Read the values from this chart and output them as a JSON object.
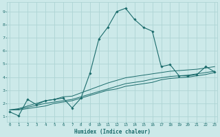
{
  "xlabel": "Humidex (Indice chaleur)",
  "bg_color": "#cce9e9",
  "grid_color": "#aed4d4",
  "line_color": "#1a6b6b",
  "x_ticks": [
    0,
    1,
    2,
    3,
    4,
    5,
    6,
    7,
    8,
    9,
    10,
    11,
    12,
    13,
    14,
    15,
    16,
    17,
    18,
    19,
    20,
    21,
    22,
    23
  ],
  "y_ticks": [
    1,
    2,
    3,
    4,
    5,
    6,
    7,
    8,
    9
  ],
  "xlim": [
    -0.3,
    23.3
  ],
  "ylim": [
    0.6,
    9.7
  ],
  "series1_x": [
    0,
    1,
    2,
    3,
    4,
    5,
    6,
    7,
    8,
    9,
    10,
    11,
    12,
    13,
    14,
    15,
    16,
    17,
    18,
    19,
    20,
    21,
    22,
    23
  ],
  "series1_y": [
    1.35,
    1.05,
    2.3,
    1.9,
    2.2,
    2.3,
    2.4,
    1.65,
    2.4,
    4.3,
    6.9,
    7.8,
    9.0,
    9.25,
    8.4,
    7.8,
    7.5,
    4.8,
    4.95,
    4.1,
    4.1,
    4.2,
    4.8,
    4.4
  ],
  "series2_x": [
    0,
    1,
    2,
    3,
    4,
    5,
    6,
    7,
    8,
    9,
    10,
    11,
    12,
    13,
    14,
    15,
    16,
    17,
    18,
    19,
    20,
    21,
    22,
    23
  ],
  "series2_y": [
    1.5,
    1.5,
    1.6,
    1.7,
    1.8,
    2.0,
    2.1,
    2.2,
    2.4,
    2.6,
    2.8,
    3.0,
    3.1,
    3.3,
    3.4,
    3.5,
    3.6,
    3.8,
    3.9,
    3.95,
    4.0,
    4.1,
    4.2,
    4.35
  ],
  "series3_x": [
    0,
    1,
    2,
    3,
    4,
    5,
    6,
    7,
    8,
    9,
    10,
    11,
    12,
    13,
    14,
    15,
    16,
    17,
    18,
    19,
    20,
    21,
    22,
    23
  ],
  "series3_y": [
    1.5,
    1.55,
    1.7,
    1.85,
    2.0,
    2.1,
    2.2,
    2.3,
    2.5,
    2.7,
    2.9,
    3.1,
    3.3,
    3.5,
    3.6,
    3.7,
    3.85,
    3.95,
    4.05,
    4.1,
    4.15,
    4.25,
    4.35,
    4.45
  ],
  "series4_x": [
    0,
    1,
    2,
    3,
    4,
    5,
    6,
    7,
    8,
    9,
    10,
    11,
    12,
    13,
    14,
    15,
    16,
    17,
    18,
    19,
    20,
    21,
    22,
    23
  ],
  "series4_y": [
    1.5,
    1.6,
    1.8,
    2.0,
    2.2,
    2.3,
    2.5,
    2.55,
    2.8,
    3.05,
    3.3,
    3.55,
    3.75,
    3.95,
    4.05,
    4.15,
    4.25,
    4.35,
    4.45,
    4.5,
    4.55,
    4.6,
    4.7,
    4.8
  ]
}
